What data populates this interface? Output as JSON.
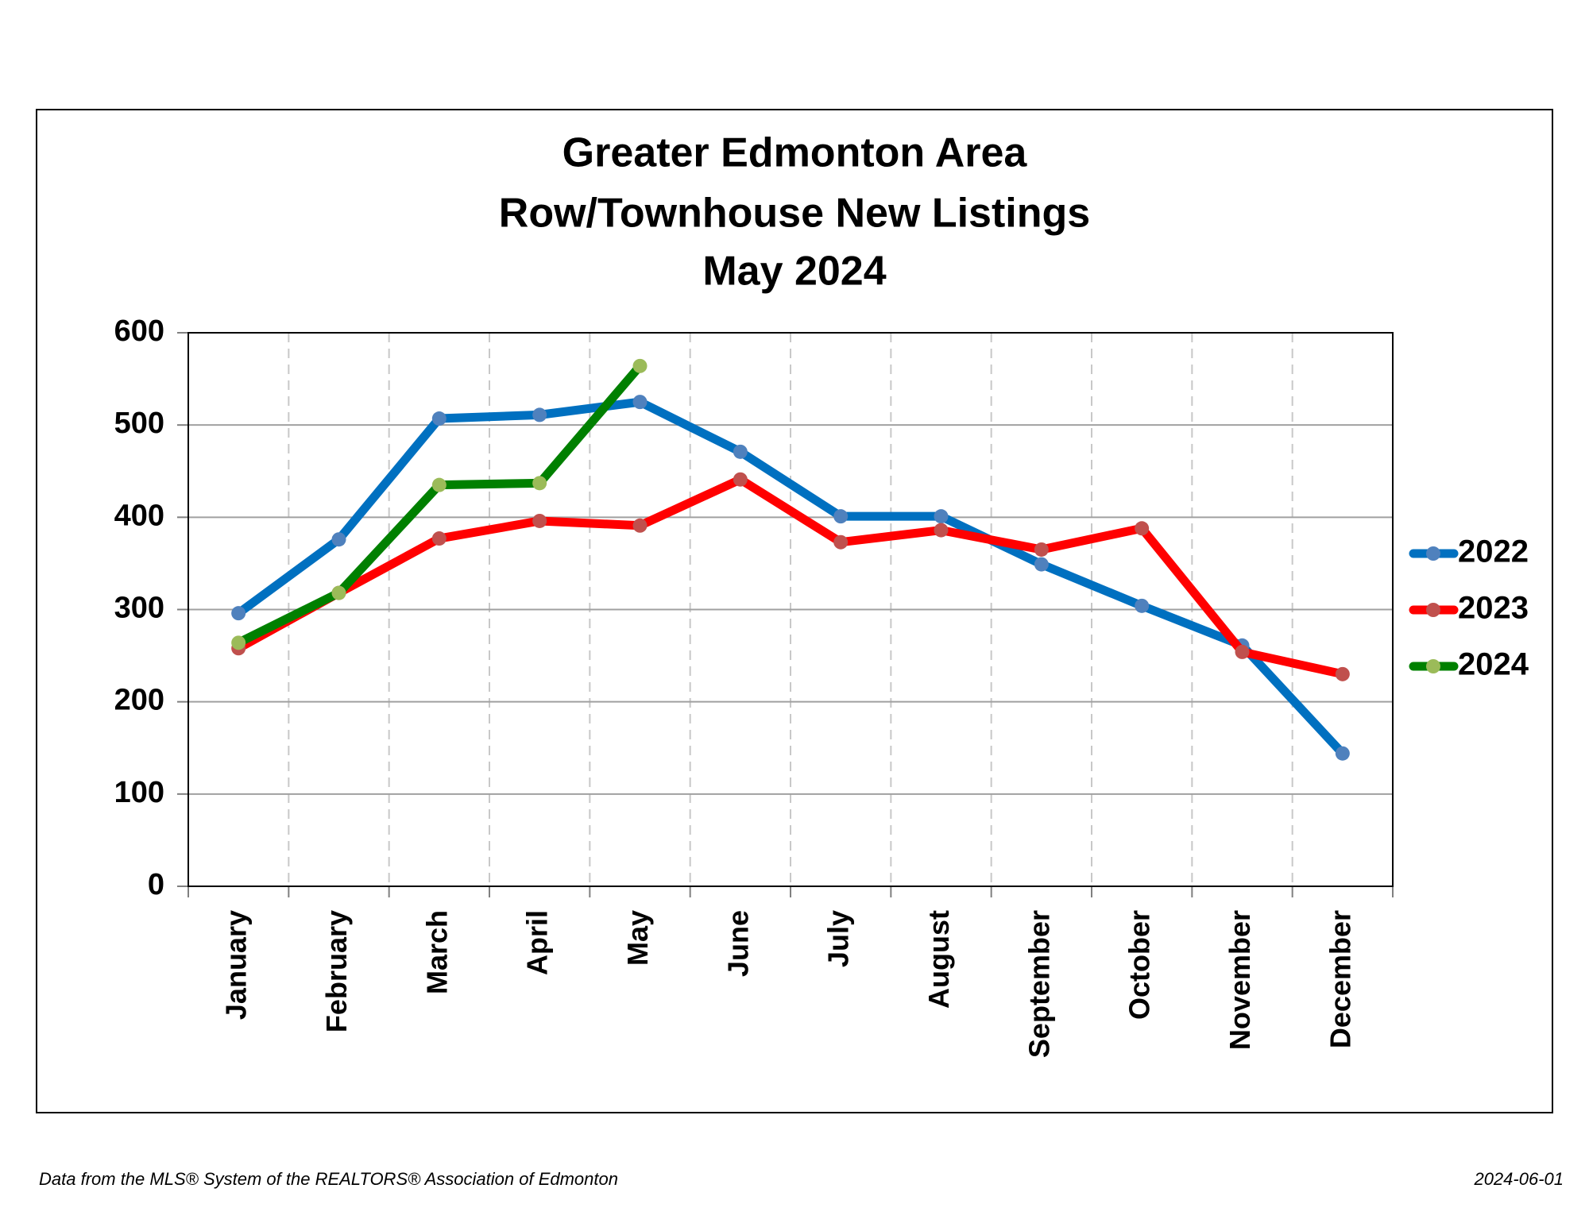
{
  "chart_data": {
    "type": "line",
    "title": [
      "Greater Edmonton Area",
      "Row/Townhouse New Listings",
      "May 2024"
    ],
    "categories": [
      "January",
      "February",
      "March",
      "April",
      "May",
      "June",
      "July",
      "August",
      "September",
      "October",
      "November",
      "December"
    ],
    "series": [
      {
        "name": "2022",
        "color": "#0070c0",
        "marker_color": "#4f81bd",
        "values": [
          296,
          376,
          507,
          511,
          525,
          471,
          401,
          401,
          349,
          304,
          261,
          144
        ]
      },
      {
        "name": "2023",
        "color": "#ff0000",
        "marker_color": "#c0504d",
        "values": [
          258,
          318,
          377,
          396,
          391,
          441,
          373,
          386,
          365,
          388,
          254,
          230
        ]
      },
      {
        "name": "2024",
        "color": "#008000",
        "marker_color": "#9bbb59",
        "values": [
          264,
          318,
          435,
          437,
          564,
          null,
          null,
          null,
          null,
          null,
          null,
          null
        ]
      }
    ],
    "ylim": [
      0,
      600
    ],
    "yticks": [
      0,
      100,
      200,
      300,
      400,
      500,
      600
    ],
    "grid": true,
    "legend": "right",
    "footnote": "Data from the MLS® System of the REALTORS® Association of Edmonton",
    "date": "2024-06-01"
  }
}
